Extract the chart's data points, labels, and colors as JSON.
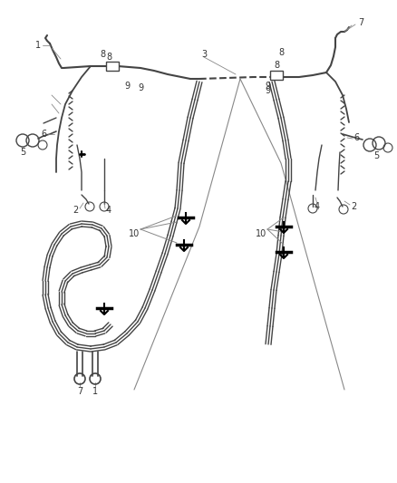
{
  "bg_color": "#ffffff",
  "line_color": "#444444",
  "gray_line": "#888888",
  "fig_width": 4.38,
  "fig_height": 5.33,
  "dpi": 100
}
